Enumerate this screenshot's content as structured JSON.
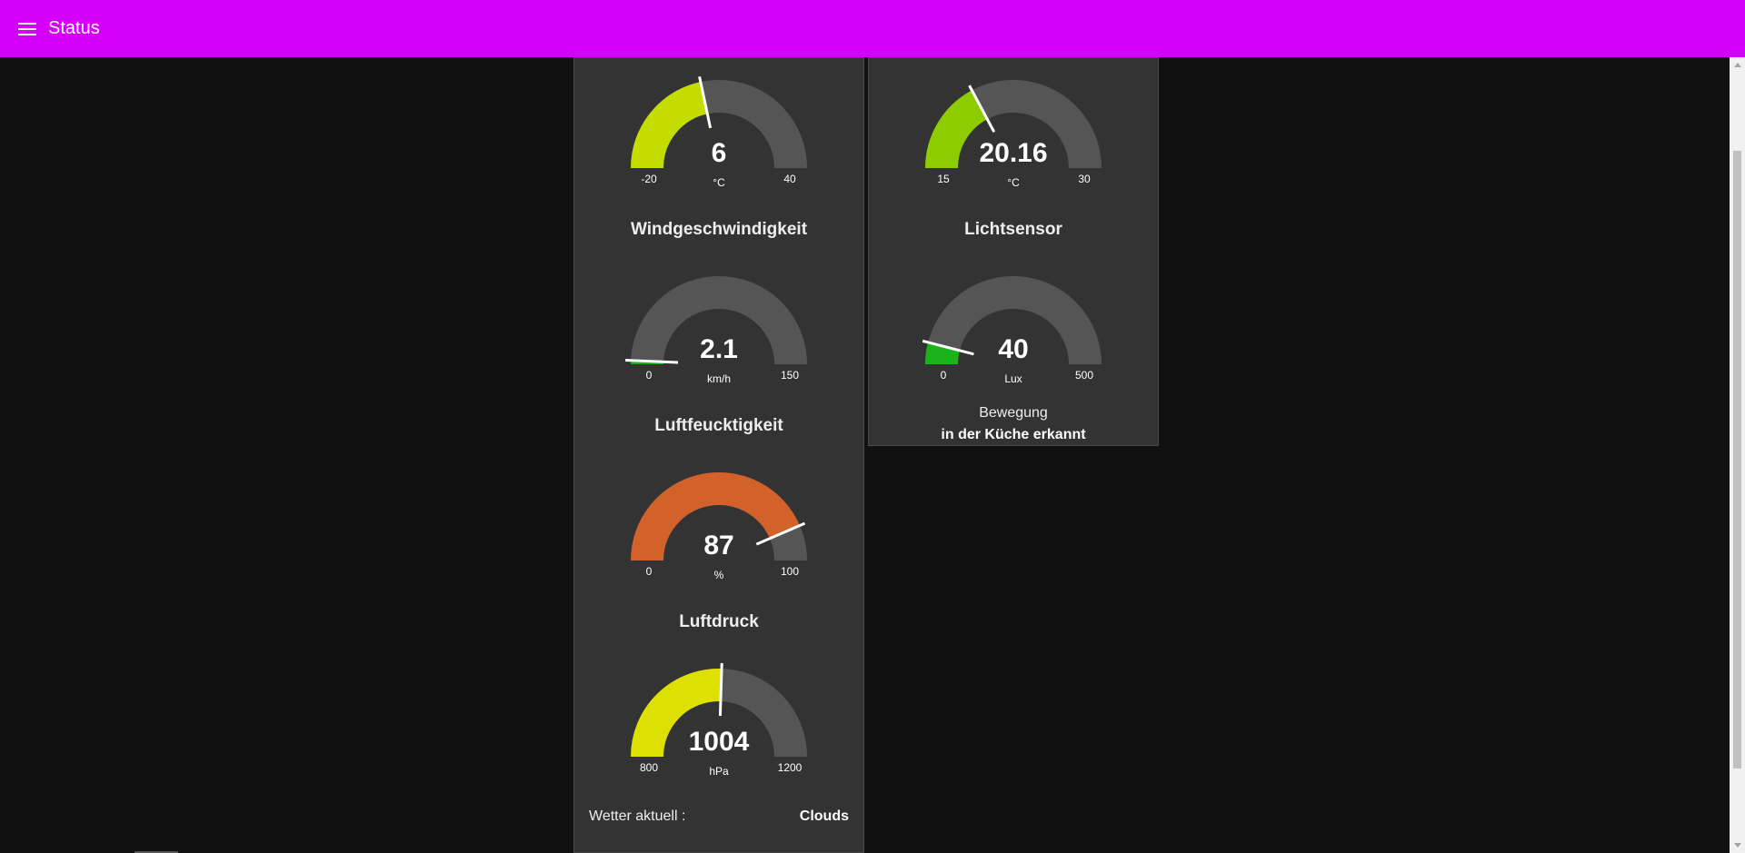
{
  "toolbar": {
    "title": "Status",
    "menu_icon": "hamburger-menu-icon",
    "background": "#d500f9"
  },
  "left_card": {
    "gauges": [
      {
        "id": "temp-outside",
        "title": "",
        "value": 6,
        "display": "6",
        "unit": "°C",
        "min": -20,
        "max": 40,
        "min_label": "-20",
        "max_label": "40",
        "color": "#c4dc00"
      },
      {
        "id": "wind",
        "title": "Windgeschwindigkeit",
        "value": 2.1,
        "display": "2.1",
        "unit": "km/h",
        "min": 0,
        "max": 150,
        "min_label": "0",
        "max_label": "150",
        "color": "#12b212"
      },
      {
        "id": "humidity",
        "title": "Luftfeucktigkeit",
        "value": 87,
        "display": "87",
        "unit": "%",
        "min": 0,
        "max": 100,
        "min_label": "0",
        "max_label": "100",
        "color": "#d2622a"
      },
      {
        "id": "pressure",
        "title": "Luftdruck",
        "value": 1004,
        "display": "1004",
        "unit": "hPa",
        "min": 800,
        "max": 1200,
        "min_label": "800",
        "max_label": "1200",
        "color": "#dde000"
      }
    ],
    "weather": {
      "label": "Wetter aktuell :",
      "value": "Clouds"
    }
  },
  "right_card": {
    "gauges": [
      {
        "id": "temp-inside",
        "title": "",
        "value": 20.16,
        "display": "20.16",
        "unit": "°C",
        "min": 15,
        "max": 30,
        "min_label": "15",
        "max_label": "30",
        "color": "#8ecc00"
      },
      {
        "id": "light",
        "title": "Lichtsensor",
        "value": 40,
        "display": "40",
        "unit": "Lux",
        "min": 0,
        "max": 500,
        "min_label": "0",
        "max_label": "500",
        "color": "#1ab31a"
      }
    ],
    "motion": {
      "label": "Bewegung",
      "value": "in der Küche erkannt"
    }
  },
  "colors": {
    "page_bg": "#111111",
    "card_bg": "#333333",
    "track": "#555555",
    "needle": "#ffffff"
  }
}
